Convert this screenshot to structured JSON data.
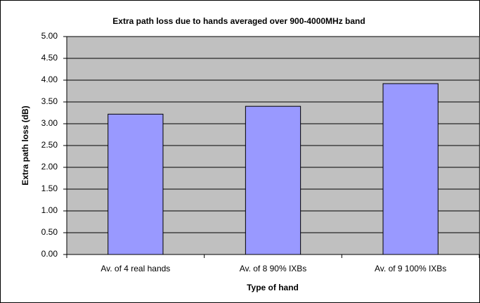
{
  "chart_data": {
    "type": "bar",
    "title": "Extra path loss due to hands averaged over 900-4000MHz band",
    "x_label": "Type of hand",
    "y_label": "Extra path loss (dB)",
    "categories": [
      "Av. of 4 real hands",
      "Av. of 8 90% IXBs",
      "Av. of 9 100% IXBs"
    ],
    "values": [
      3.22,
      3.4,
      3.92
    ],
    "color": "#9999ff",
    "ylim": [
      0,
      5
    ],
    "yticks": [
      {
        "value": 0,
        "label": "0.00"
      },
      {
        "value": 0.5,
        "label": "0.50"
      },
      {
        "value": 1,
        "label": "1.00"
      },
      {
        "value": 1.5,
        "label": "1.50"
      },
      {
        "value": 2,
        "label": "2.00"
      },
      {
        "value": 2.5,
        "label": "2.50"
      },
      {
        "value": 3,
        "label": "3.00"
      },
      {
        "value": 3.5,
        "label": "3.50"
      },
      {
        "value": 4,
        "label": "4.00"
      },
      {
        "value": 4.5,
        "label": "4.50"
      },
      {
        "value": 5,
        "label": "5.00"
      }
    ],
    "grid": true,
    "plot_background": "#c0c0c0"
  }
}
